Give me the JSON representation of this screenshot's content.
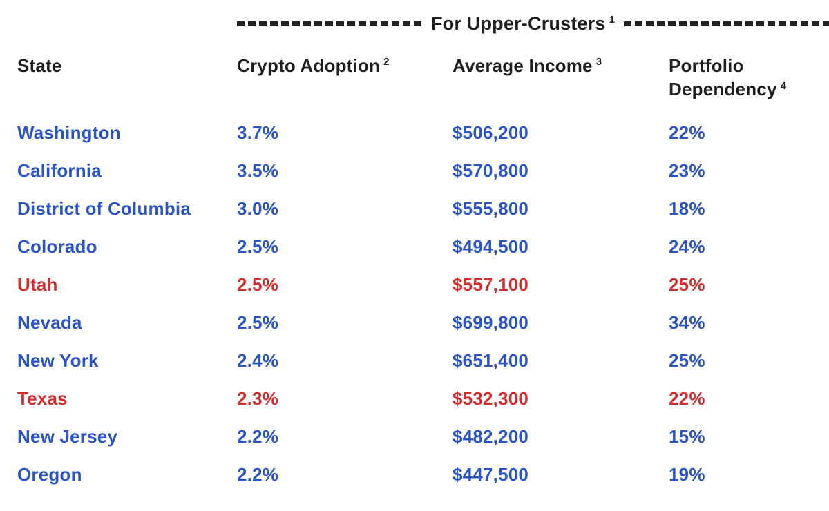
{
  "page": {
    "background": "#ffffff"
  },
  "colors": {
    "ink": "#1f1f1f",
    "blue": "#2b54c4",
    "red": "#d02e2e",
    "dash": "#232323"
  },
  "header_band": {
    "title": "For Upper-Crusters",
    "footnote_marker": "1"
  },
  "table": {
    "columns": [
      {
        "label": "State",
        "footnote_marker": ""
      },
      {
        "label": "Crypto Adoption",
        "footnote_marker": "2"
      },
      {
        "label": "Average Income",
        "footnote_marker": "3"
      },
      {
        "label": "Portfolio Dependency",
        "footnote_marker": "4"
      }
    ],
    "rows": [
      {
        "state": "Washington",
        "adoption": "3.7%",
        "income": "$506,200",
        "dependency": "22%",
        "color": "blue"
      },
      {
        "state": "California",
        "adoption": "3.5%",
        "income": "$570,800",
        "dependency": "23%",
        "color": "blue"
      },
      {
        "state": "District of Columbia",
        "adoption": "3.0%",
        "income": "$555,800",
        "dependency": "18%",
        "color": "blue"
      },
      {
        "state": "Colorado",
        "adoption": "2.5%",
        "income": "$494,500",
        "dependency": "24%",
        "color": "blue"
      },
      {
        "state": "Utah",
        "adoption": "2.5%",
        "income": "$557,100",
        "dependency": "25%",
        "color": "red"
      },
      {
        "state": "Nevada",
        "adoption": "2.5%",
        "income": "$699,800",
        "dependency": "34%",
        "color": "blue"
      },
      {
        "state": "New York",
        "adoption": "2.4%",
        "income": "$651,400",
        "dependency": "25%",
        "color": "blue"
      },
      {
        "state": "Texas",
        "adoption": "2.3%",
        "income": "$532,300",
        "dependency": "22%",
        "color": "red"
      },
      {
        "state": "New Jersey",
        "adoption": "2.2%",
        "income": "$482,200",
        "dependency": "15%",
        "color": "blue"
      },
      {
        "state": "Oregon",
        "adoption": "2.2%",
        "income": "$447,500",
        "dependency": "19%",
        "color": "blue"
      }
    ]
  },
  "chart_data": {
    "type": "table",
    "title": "For Upper-Crusters",
    "columns": [
      "State",
      "Crypto Adoption",
      "Average Income",
      "Portfolio Dependency"
    ],
    "footnote_markers": {
      "title": "1",
      "Crypto Adoption": "2",
      "Average Income": "3",
      "Portfolio Dependency": "4"
    },
    "rows": [
      [
        "Washington",
        "3.7%",
        "$506,200",
        "22%"
      ],
      [
        "California",
        "3.5%",
        "$570,800",
        "23%"
      ],
      [
        "District of Columbia",
        "3.0%",
        "$555,800",
        "18%"
      ],
      [
        "Colorado",
        "2.5%",
        "$494,500",
        "24%"
      ],
      [
        "Utah",
        "2.5%",
        "$557,100",
        "25%"
      ],
      [
        "Nevada",
        "2.5%",
        "$699,800",
        "34%"
      ],
      [
        "New York",
        "2.4%",
        "$651,400",
        "25%"
      ],
      [
        "Texas",
        "2.3%",
        "$532,300",
        "22%"
      ],
      [
        "New Jersey",
        "2.2%",
        "$482,200",
        "15%"
      ],
      [
        "Oregon",
        "2.2%",
        "$447,500",
        "19%"
      ]
    ],
    "row_text_colors": [
      "blue",
      "blue",
      "blue",
      "blue",
      "red",
      "blue",
      "blue",
      "red",
      "blue",
      "blue"
    ],
    "crypto_adoption_values_pct": [
      3.7,
      3.5,
      3.0,
      2.5,
      2.5,
      2.5,
      2.4,
      2.3,
      2.2,
      2.2
    ],
    "average_income_values_usd": [
      506200,
      570800,
      555800,
      494500,
      557100,
      699800,
      651400,
      532300,
      482200,
      447500
    ],
    "portfolio_dependency_values_pct": [
      22,
      23,
      18,
      24,
      25,
      34,
      25,
      22,
      15,
      19
    ]
  }
}
